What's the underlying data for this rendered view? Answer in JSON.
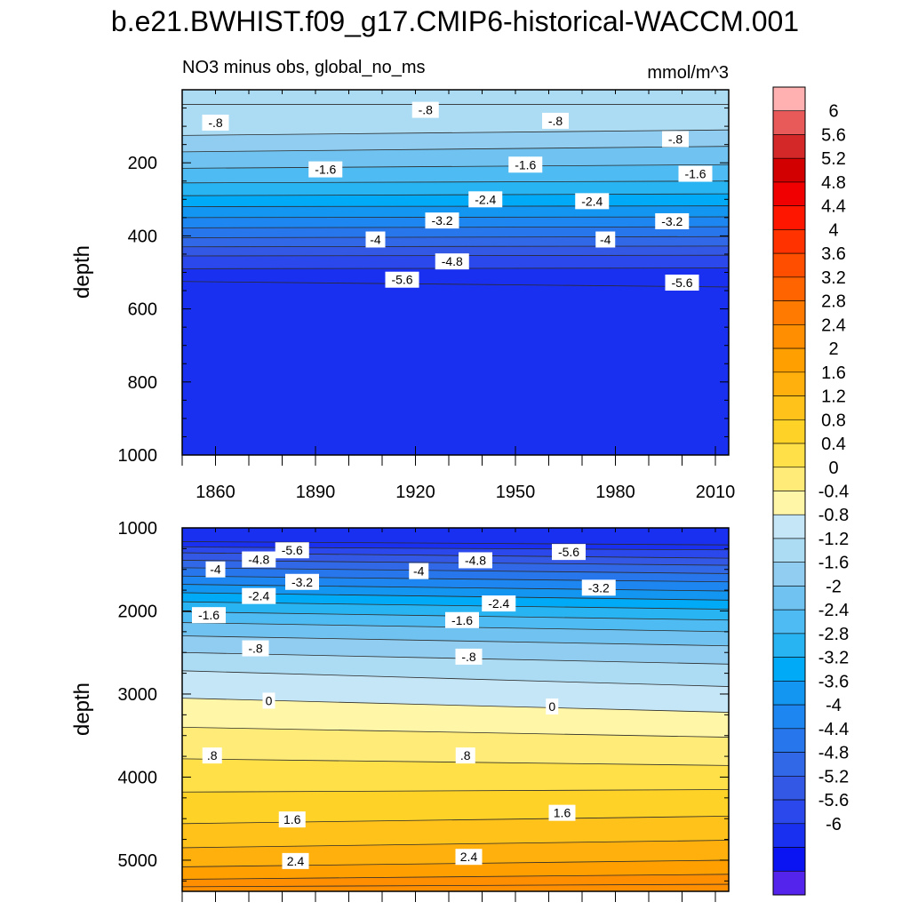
{
  "header": {
    "title": "b.e21.BWHIST.f09_g17.CMIP6-historical-WACCM.001"
  },
  "upper_panel": {
    "left_title": "NO3 minus obs, global_no_ms",
    "right_title": "mmol/m^3"
  },
  "colors": {
    "positive": [
      "#fff6a8",
      "#ffec78",
      "#ffe048",
      "#ffd228",
      "#ffc21a",
      "#ffb00c",
      "#ffa000",
      "#ff8e00",
      "#ff7a00",
      "#ff6400",
      "#ff4e00",
      "#ff3200",
      "#ff1600",
      "#f00000",
      "#d20000",
      "#e85a5a",
      "#ffb0b0"
    ],
    "negative": [
      "#c5e6f6",
      "#acdcf4",
      "#90cdf0",
      "#70c3f0",
      "#4ebbf2",
      "#28b4f2",
      "#00aaf6",
      "#1296f2",
      "#1e86f0",
      "#2876ec",
      "#3068e8",
      "#3458e6",
      "#2a48ec",
      "#1a30f0",
      "#0a14f2",
      "#2e1aee",
      "#5424ec",
      "#7c24ec"
    ]
  },
  "chart_data": [
    {
      "type": "heatmap",
      "subtype": "filled-contour",
      "title": "NO3 minus obs, global_no_ms",
      "units": "mmol/m^3",
      "xlabel": "",
      "ylabel": "depth",
      "xlim": [
        1850,
        2014
      ],
      "ylim": [
        0,
        1000
      ],
      "y_inverted": true,
      "xticks": [
        1860,
        1890,
        1920,
        1950,
        1980,
        2010
      ],
      "yticks": [
        200,
        400,
        600,
        800,
        1000
      ],
      "contour_lines": [
        {
          "level": -0.4,
          "depth": [
            [
              1850,
              40
            ],
            [
              2014,
              40
            ]
          ]
        },
        {
          "level": -0.8,
          "depth": [
            [
              1850,
              125
            ],
            [
              2014,
              110
            ]
          ]
        },
        {
          "level": -1.2,
          "depth": [
            [
              1850,
              170
            ],
            [
              2014,
              155
            ]
          ]
        },
        {
          "level": -1.6,
          "depth": [
            [
              1850,
              215
            ],
            [
              2014,
              205
            ]
          ]
        },
        {
          "level": -2.0,
          "depth": [
            [
              1850,
              255
            ],
            [
              2014,
              250
            ]
          ]
        },
        {
          "level": -2.4,
          "depth": [
            [
              1850,
              290
            ],
            [
              2014,
              285
            ]
          ]
        },
        {
          "level": -2.8,
          "depth": [
            [
              1850,
              320
            ],
            [
              2014,
              318
            ]
          ]
        },
        {
          "level": -3.2,
          "depth": [
            [
              1850,
              350
            ],
            [
              2014,
              348
            ]
          ]
        },
        {
          "level": -3.6,
          "depth": [
            [
              1850,
              378
            ],
            [
              2014,
              375
            ]
          ]
        },
        {
          "level": -4.0,
          "depth": [
            [
              1850,
              405
            ],
            [
              2014,
              402
            ]
          ]
        },
        {
          "level": -4.4,
          "depth": [
            [
              1850,
              430
            ],
            [
              2014,
              428
            ]
          ]
        },
        {
          "level": -4.8,
          "depth": [
            [
              1850,
              455
            ],
            [
              2014,
              453
            ]
          ]
        },
        {
          "level": -5.2,
          "depth": [
            [
              1850,
              490
            ],
            [
              2014,
              488
            ]
          ]
        },
        {
          "level": -5.6,
          "depth": [
            [
              1850,
              525
            ],
            [
              2014,
              540
            ]
          ]
        }
      ],
      "line_labels": [
        {
          "text": "-.8",
          "x": 1860,
          "depth": 90
        },
        {
          "text": "-.8",
          "x": 1923,
          "depth": 55
        },
        {
          "text": "-.8",
          "x": 1962,
          "depth": 85
        },
        {
          "text": "-.8",
          "x": 1998,
          "depth": 135
        },
        {
          "text": "-1.6",
          "x": 1893,
          "depth": 218
        },
        {
          "text": "-1.6",
          "x": 1953,
          "depth": 205
        },
        {
          "text": "-1.6",
          "x": 2004,
          "depth": 230
        },
        {
          "text": "-2.4",
          "x": 1941,
          "depth": 300
        },
        {
          "text": "-2.4",
          "x": 1973,
          "depth": 305
        },
        {
          "text": "-3.2",
          "x": 1928,
          "depth": 358
        },
        {
          "text": "-3.2",
          "x": 1997,
          "depth": 360
        },
        {
          "text": "-4",
          "x": 1908,
          "depth": 410
        },
        {
          "text": "-4",
          "x": 1977,
          "depth": 410
        },
        {
          "text": "-4.8",
          "x": 1931,
          "depth": 470
        },
        {
          "text": "-5.6",
          "x": 1916,
          "depth": 520
        },
        {
          "text": "-5.6",
          "x": 2000,
          "depth": 528
        }
      ]
    },
    {
      "type": "heatmap",
      "subtype": "filled-contour",
      "xlabel": "",
      "ylabel": "depth",
      "xlim": [
        1850,
        2014
      ],
      "ylim": [
        1000,
        5375
      ],
      "y_inverted": true,
      "yticks": [
        1000,
        2000,
        3000,
        4000,
        5000
      ],
      "contour_lines": [
        {
          "level": -5.6,
          "depth": [
            [
              1850,
              1165
            ],
            [
              2014,
              1205
            ]
          ]
        },
        {
          "level": -5.2,
          "depth": [
            [
              1850,
              1230
            ],
            [
              2014,
              1265
            ]
          ]
        },
        {
          "level": -4.8,
          "depth": [
            [
              1850,
              1300
            ],
            [
              2014,
              1365
            ]
          ]
        },
        {
          "level": -4.4,
          "depth": [
            [
              1850,
              1390
            ],
            [
              2014,
              1450
            ]
          ]
        },
        {
          "level": -4.0,
          "depth": [
            [
              1850,
              1480
            ],
            [
              2014,
              1550
            ]
          ]
        },
        {
          "level": -3.6,
          "depth": [
            [
              1850,
              1580
            ],
            [
              2014,
              1650
            ]
          ]
        },
        {
          "level": -3.2,
          "depth": [
            [
              1850,
              1680
            ],
            [
              2014,
              1760
            ]
          ]
        },
        {
          "level": -2.8,
          "depth": [
            [
              1850,
              1780
            ],
            [
              2014,
              1870
            ]
          ]
        },
        {
          "level": -2.4,
          "depth": [
            [
              1850,
              1890
            ],
            [
              2014,
              1980
            ]
          ]
        },
        {
          "level": -2.0,
          "depth": [
            [
              1850,
              2010
            ],
            [
              2014,
              2110
            ]
          ]
        },
        {
          "level": -1.6,
          "depth": [
            [
              1850,
              2140
            ],
            [
              2014,
              2250
            ]
          ]
        },
        {
          "level": -1.2,
          "depth": [
            [
              1850,
              2300
            ],
            [
              2014,
              2420
            ]
          ]
        },
        {
          "level": -0.8,
          "depth": [
            [
              1850,
              2500
            ],
            [
              2014,
              2640
            ]
          ]
        },
        {
          "level": -0.4,
          "depth": [
            [
              1850,
              2720
            ],
            [
              2014,
              2910
            ]
          ]
        },
        {
          "level": 0.0,
          "depth": [
            [
              1850,
              3050
            ],
            [
              2014,
              3220
            ]
          ]
        },
        {
          "level": 0.4,
          "depth": [
            [
              1850,
              3400
            ],
            [
              2014,
              3520
            ]
          ]
        },
        {
          "level": 0.8,
          "depth": [
            [
              1850,
              3780
            ],
            [
              2014,
              3860
            ]
          ]
        },
        {
          "level": 1.2,
          "depth": [
            [
              1850,
              4180
            ],
            [
              2014,
              4150
            ]
          ]
        },
        {
          "level": 1.6,
          "depth": [
            [
              1850,
              4560
            ],
            [
              2014,
              4470
            ]
          ]
        },
        {
          "level": 2.0,
          "depth": [
            [
              1850,
              4850
            ],
            [
              2014,
              4760
            ]
          ]
        },
        {
          "level": 2.4,
          "depth": [
            [
              1850,
              5080
            ],
            [
              2014,
              5000
            ]
          ]
        },
        {
          "level": 2.8,
          "depth": [
            [
              1850,
              5230
            ],
            [
              2014,
              5170
            ]
          ]
        },
        {
          "level": 3.2,
          "depth": [
            [
              1850,
              5320
            ],
            [
              2014,
              5290
            ]
          ]
        }
      ],
      "line_labels": [
        {
          "text": "-5.6",
          "x": 1883,
          "depth": 1270
        },
        {
          "text": "-5.6",
          "x": 1966,
          "depth": 1290
        },
        {
          "text": "-4.8",
          "x": 1873,
          "depth": 1380
        },
        {
          "text": "-4.8",
          "x": 1938,
          "depth": 1390
        },
        {
          "text": "-4",
          "x": 1860,
          "depth": 1500
        },
        {
          "text": "-4",
          "x": 1921,
          "depth": 1520
        },
        {
          "text": "-3.2",
          "x": 1886,
          "depth": 1650
        },
        {
          "text": "-3.2",
          "x": 1975,
          "depth": 1720
        },
        {
          "text": "-2.4",
          "x": 1873,
          "depth": 1820
        },
        {
          "text": "-2.4",
          "x": 1945,
          "depth": 1910
        },
        {
          "text": "-1.6",
          "x": 1858,
          "depth": 2050
        },
        {
          "text": "-1.6",
          "x": 1934,
          "depth": 2110
        },
        {
          "text": "-.8",
          "x": 1872,
          "depth": 2450
        },
        {
          "text": "-.8",
          "x": 1936,
          "depth": 2550
        },
        {
          "text": "0",
          "x": 1876,
          "depth": 3080
        },
        {
          "text": "0",
          "x": 1961,
          "depth": 3150
        },
        {
          "text": ".8",
          "x": 1859,
          "depth": 3740
        },
        {
          "text": ".8",
          "x": 1935,
          "depth": 3740
        },
        {
          "text": "1.6",
          "x": 1883,
          "depth": 4510
        },
        {
          "text": "1.6",
          "x": 1964,
          "depth": 4430
        },
        {
          "text": "2.4",
          "x": 1884,
          "depth": 5010
        },
        {
          "text": "2.4",
          "x": 1936,
          "depth": 4960
        }
      ]
    }
  ],
  "colorbar": {
    "labels": [
      "6",
      "5.6",
      "5.2",
      "4.8",
      "4.4",
      "4",
      "3.6",
      "3.2",
      "2.8",
      "2.4",
      "2",
      "1.6",
      "1.2",
      "0.8",
      "0.4",
      "0",
      "-0.4",
      "-0.8",
      "-1.2",
      "-1.6",
      "-2",
      "-2.4",
      "-2.8",
      "-3.2",
      "-3.6",
      "-4",
      "-4.4",
      "-4.8",
      "-5.2",
      "-5.6",
      "-6"
    ],
    "colors_top_to_bottom": [
      "#ffb0b0",
      "#e85a5a",
      "#d42828",
      "#d20000",
      "#f00000",
      "#ff1600",
      "#ff3200",
      "#ff4e00",
      "#ff6400",
      "#ff7a00",
      "#ff8e00",
      "#ffa000",
      "#ffb00c",
      "#ffc21a",
      "#ffd228",
      "#ffe048",
      "#ffec78",
      "#fff6a8",
      "#c5e6f6",
      "#acdcf4",
      "#90cdf0",
      "#70c3f0",
      "#4ebbf2",
      "#28b4f2",
      "#00aaf6",
      "#1296f2",
      "#1e86f0",
      "#2876ec",
      "#3068e8",
      "#3458e6",
      "#2a48ec",
      "#1a30f0",
      "#0a14f2",
      "#5424ec"
    ]
  }
}
